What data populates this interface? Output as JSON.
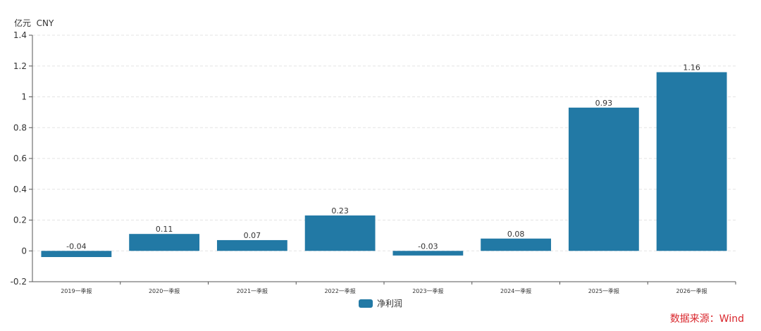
{
  "chart_data": {
    "type": "bar",
    "unit_label": "亿元  CNY",
    "categories": [
      "2019一季报",
      "2020一季报",
      "2021一季报",
      "2022一季报",
      "2023一季报",
      "2024一季报",
      "2025一季报",
      "2026一季报"
    ],
    "series": [
      {
        "name": "净利润",
        "values": [
          -0.04,
          0.11,
          0.07,
          0.23,
          -0.03,
          0.08,
          0.93,
          1.16
        ],
        "labels": [
          "-0.04",
          "0.11",
          "0.07",
          "0.23",
          "-0.03",
          "0.08",
          "0.93",
          "1.16"
        ]
      }
    ],
    "ylim": [
      -0.2,
      1.4
    ],
    "yticks": [
      -0.2,
      0,
      0.2,
      0.4,
      0.6,
      0.8,
      1,
      1.2,
      1.4
    ],
    "ytick_labels": [
      "-0.2",
      "0",
      "0.2",
      "0.4",
      "0.6",
      "0.8",
      "1",
      "1.2",
      "1.4"
    ],
    "grid": true,
    "legend_position": "bottom-center",
    "colors": {
      "bar": "#2279a5",
      "axis": "#555555",
      "grid": "#e3e3e3",
      "text": "#333333"
    }
  },
  "source": "数据来源：Wind"
}
